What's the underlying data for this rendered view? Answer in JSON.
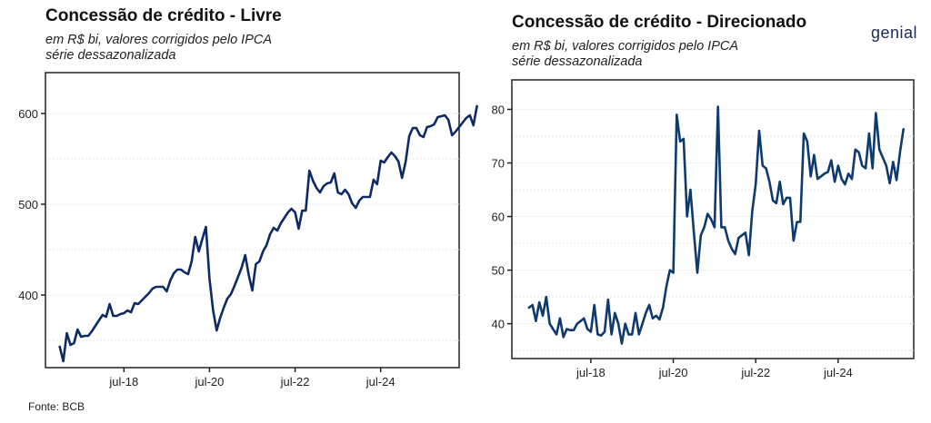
{
  "brand": {
    "logo_text": "genial"
  },
  "source": "Fonte: BCB",
  "colors": {
    "line": "#0d2a66",
    "line_right": "#0e3a6e",
    "axis": "#222222",
    "grid": "#e6e6e6"
  },
  "chart_data": [
    {
      "type": "line",
      "title": "Concessão de crédito - Livre",
      "subtitle_line1": "em R$ bi, valores corrigidos pelo IPCA",
      "subtitle_line2": "série dessazonalizada",
      "xlabel": "",
      "ylabel": "",
      "x_start": "2017-01",
      "x_frequency": "monthly",
      "x_ticks": [
        {
          "label": "jul-18",
          "month_index": 18
        },
        {
          "label": "jul-20",
          "month_index": 42
        },
        {
          "label": "jul-22",
          "month_index": 66
        },
        {
          "label": "jul-24",
          "month_index": 90
        }
      ],
      "y_ticks": [
        400,
        500,
        600
      ],
      "y_minor_grid": [
        350,
        450,
        550
      ],
      "ylim": [
        320,
        645
      ],
      "xlim_months": [
        -4,
        112
      ],
      "grid": true,
      "series": [
        {
          "name": "Livre",
          "values": [
            343,
            327,
            358,
            345,
            347,
            362,
            354,
            355,
            355,
            360,
            366,
            372,
            378,
            376,
            390,
            377,
            377,
            379,
            380,
            383,
            381,
            391,
            390,
            394,
            398,
            402,
            407,
            409,
            409,
            409,
            404,
            416,
            424,
            428,
            428,
            425,
            423,
            437,
            464,
            448,
            462,
            475,
            418,
            383,
            361,
            375,
            386,
            396,
            401,
            410,
            420,
            430,
            444,
            422,
            405,
            434,
            437,
            448,
            455,
            467,
            474,
            471,
            479,
            485,
            491,
            495,
            491,
            473,
            493,
            493,
            537,
            526,
            518,
            513,
            520,
            523,
            524,
            534,
            513,
            511,
            516,
            511,
            501,
            496,
            504,
            508,
            508,
            508,
            527,
            522,
            548,
            546,
            552,
            557,
            553,
            547,
            529,
            547,
            575,
            584,
            584,
            576,
            574,
            585,
            586,
            588,
            596,
            597,
            598,
            593,
            576,
            580,
            585,
            590,
            595,
            598,
            587,
            608
          ]
        }
      ]
    },
    {
      "type": "line",
      "title": "Concessão de crédito - Direcionado",
      "subtitle_line1": "em R$ bi, valores corrigidos pelo IPCA",
      "subtitle_line2": "série dessazonalizada",
      "xlabel": "",
      "ylabel": "",
      "x_start": "2017-01",
      "x_frequency": "monthly",
      "x_ticks": [
        {
          "label": "jul-18",
          "month_index": 18
        },
        {
          "label": "jul-20",
          "month_index": 42
        },
        {
          "label": "jul-22",
          "month_index": 66
        },
        {
          "label": "jul-24",
          "month_index": 90
        }
      ],
      "y_ticks": [
        40,
        50,
        60,
        70,
        80
      ],
      "y_minor_grid": [
        35,
        45,
        55,
        65,
        75
      ],
      "ylim": [
        33.5,
        85.5
      ],
      "xlim_months": [
        -5,
        112
      ],
      "grid": true,
      "series": [
        {
          "name": "Direcionado",
          "values": [
            43,
            43.5,
            40.5,
            44,
            41.5,
            45,
            40,
            39,
            38,
            41,
            37.5,
            39,
            38.8,
            38.8,
            40,
            40.5,
            41,
            39,
            38.5,
            43.5,
            38,
            37.8,
            38.5,
            44.5,
            38,
            42,
            40,
            36.3,
            40,
            38,
            38,
            42,
            38,
            40,
            42,
            43.5,
            41,
            41.5,
            40.8,
            43,
            47,
            50,
            49.5,
            79,
            74,
            74.5,
            60,
            65,
            57,
            49.5,
            56.5,
            58,
            60.5,
            59.5,
            58,
            80.5,
            58,
            58,
            55.5,
            54,
            53,
            56,
            56.5,
            57,
            52.8,
            61,
            66,
            76,
            69.5,
            69,
            66.5,
            63,
            62.5,
            66.5,
            62.3,
            63.5,
            63.5,
            55.5,
            59,
            59,
            75.5,
            74,
            67.5,
            71.5,
            67,
            67.5,
            68,
            68.3,
            70.5,
            66.5,
            69.5,
            67,
            66,
            68,
            67,
            72.5,
            72,
            69.5,
            69,
            75.5,
            69,
            79.3,
            72.5,
            71,
            69.5,
            66.2,
            70.2,
            66.8,
            72,
            76.3
          ]
        }
      ]
    }
  ]
}
